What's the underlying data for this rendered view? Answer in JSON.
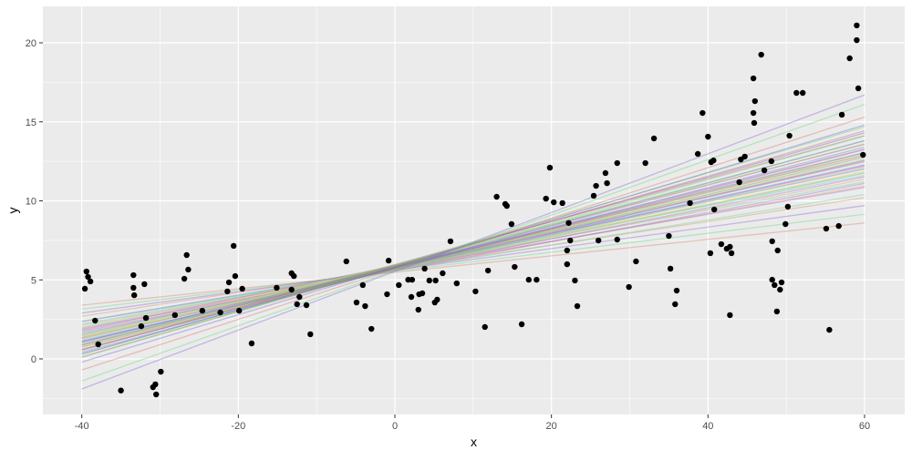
{
  "chart_data": {
    "type": "scatter",
    "title": "",
    "xlabel": "x",
    "ylabel": "y",
    "xlim": [
      -45,
      65
    ],
    "ylim": [
      -3.7,
      22.1
    ],
    "xticks": [
      -40,
      -20,
      0,
      20,
      40,
      60
    ],
    "yticks": [
      0,
      5,
      10,
      15,
      20
    ],
    "grid": true,
    "background": "#EBEBEB",
    "point_color": "#000000",
    "points": [
      [
        -39.6,
        4.44
      ],
      [
        -39.4,
        5.53
      ],
      [
        -39.2,
        5.19
      ],
      [
        -38.9,
        4.9
      ],
      [
        -38.3,
        2.42
      ],
      [
        -37.9,
        0.92
      ],
      [
        -33.4,
        4.5
      ],
      [
        -33.4,
        5.3
      ],
      [
        -33.3,
        4.03
      ],
      [
        -32.0,
        4.73
      ],
      [
        -32.4,
        2.07
      ],
      [
        -31.8,
        2.59
      ],
      [
        -30.9,
        -1.79
      ],
      [
        -30.6,
        -1.61
      ],
      [
        -30.5,
        -2.25
      ],
      [
        -29.9,
        -0.81
      ],
      [
        -35.0,
        -2.0
      ],
      [
        -28.1,
        2.77
      ],
      [
        -26.9,
        5.07
      ],
      [
        -26.6,
        6.57
      ],
      [
        -26.4,
        5.65
      ],
      [
        -24.6,
        3.05
      ],
      [
        -22.3,
        2.94
      ],
      [
        -21.4,
        4.27
      ],
      [
        -21.2,
        4.84
      ],
      [
        -20.6,
        7.15
      ],
      [
        -20.4,
        5.24
      ],
      [
        -19.9,
        3.05
      ],
      [
        -19.5,
        4.44
      ],
      [
        -18.3,
        0.98
      ],
      [
        -15.1,
        4.5
      ],
      [
        -13.2,
        4.38
      ],
      [
        -13.2,
        5.42
      ],
      [
        -12.9,
        5.24
      ],
      [
        -12.5,
        3.46
      ],
      [
        -12.2,
        3.92
      ],
      [
        -11.3,
        3.4
      ],
      [
        -10.8,
        1.56
      ],
      [
        -6.2,
        6.17
      ],
      [
        -4.9,
        3.57
      ],
      [
        -4.1,
        4.67
      ],
      [
        -3.8,
        3.34
      ],
      [
        -3.0,
        1.9
      ],
      [
        -1.0,
        4.09
      ],
      [
        -0.8,
        6.22
      ],
      [
        0.5,
        4.67
      ],
      [
        1.7,
        5.01
      ],
      [
        2.1,
        3.92
      ],
      [
        2.2,
        5.01
      ],
      [
        3.0,
        3.11
      ],
      [
        3.1,
        4.09
      ],
      [
        3.5,
        4.15
      ],
      [
        3.8,
        5.71
      ],
      [
        4.4,
        4.96
      ],
      [
        5.1,
        3.57
      ],
      [
        5.2,
        4.96
      ],
      [
        5.4,
        3.75
      ],
      [
        6.1,
        5.42
      ],
      [
        7.1,
        7.44
      ],
      [
        7.9,
        4.78
      ],
      [
        10.3,
        4.27
      ],
      [
        11.5,
        2.02
      ],
      [
        11.9,
        5.59
      ],
      [
        13.0,
        10.26
      ],
      [
        14.1,
        9.8
      ],
      [
        14.3,
        9.68
      ],
      [
        14.9,
        8.53
      ],
      [
        15.3,
        5.82
      ],
      [
        16.2,
        2.19
      ],
      [
        17.1,
        5.01
      ],
      [
        18.1,
        5.01
      ],
      [
        19.3,
        10.14
      ],
      [
        19.8,
        12.1
      ],
      [
        20.3,
        9.91
      ],
      [
        21.4,
        9.86
      ],
      [
        22.0,
        5.99
      ],
      [
        22.0,
        6.86
      ],
      [
        22.4,
        7.49
      ],
      [
        22.2,
        8.6
      ],
      [
        23.0,
        4.96
      ],
      [
        23.3,
        3.34
      ],
      [
        25.4,
        10.32
      ],
      [
        25.7,
        10.95
      ],
      [
        26.0,
        7.49
      ],
      [
        26.9,
        11.76
      ],
      [
        27.1,
        11.12
      ],
      [
        28.4,
        12.39
      ],
      [
        28.4,
        7.55
      ],
      [
        29.9,
        4.55
      ],
      [
        30.8,
        6.17
      ],
      [
        33.1,
        13.95
      ],
      [
        32.0,
        12.39
      ],
      [
        35.0,
        7.78
      ],
      [
        35.2,
        5.71
      ],
      [
        35.8,
        3.46
      ],
      [
        36.0,
        4.32
      ],
      [
        37.7,
        9.86
      ],
      [
        38.7,
        12.97
      ],
      [
        39.3,
        15.56
      ],
      [
        40.0,
        14.06
      ],
      [
        40.3,
        6.69
      ],
      [
        40.4,
        12.45
      ],
      [
        40.7,
        12.56
      ],
      [
        40.8,
        9.45
      ],
      [
        41.7,
        7.26
      ],
      [
        42.4,
        6.97
      ],
      [
        42.8,
        2.77
      ],
      [
        42.8,
        7.09
      ],
      [
        43.0,
        6.69
      ],
      [
        44.0,
        11.18
      ],
      [
        44.2,
        12.62
      ],
      [
        44.7,
        12.8
      ],
      [
        45.8,
        17.75
      ],
      [
        45.8,
        15.56
      ],
      [
        45.9,
        14.93
      ],
      [
        46.0,
        16.31
      ],
      [
        46.8,
        19.25
      ],
      [
        47.2,
        11.93
      ],
      [
        48.1,
        12.51
      ],
      [
        48.2,
        7.44
      ],
      [
        48.2,
        5.01
      ],
      [
        48.5,
        4.67
      ],
      [
        48.8,
        3.0
      ],
      [
        48.9,
        6.86
      ],
      [
        49.2,
        4.38
      ],
      [
        49.4,
        4.84
      ],
      [
        49.9,
        8.53
      ],
      [
        50.2,
        9.63
      ],
      [
        50.4,
        14.12
      ],
      [
        51.3,
        16.83
      ],
      [
        52.1,
        16.83
      ],
      [
        55.1,
        8.24
      ],
      [
        55.5,
        1.84
      ],
      [
        56.7,
        8.41
      ],
      [
        57.1,
        15.45
      ],
      [
        58.1,
        19.02
      ],
      [
        59.0,
        21.1
      ],
      [
        59.0,
        20.17
      ],
      [
        59.2,
        17.12
      ],
      [
        59.8,
        12.91
      ]
    ],
    "fit_lines": {
      "x_range": [
        -40,
        60
      ],
      "opacity": 0.4,
      "slopes": [
        0.052,
        0.06,
        0.068,
        0.075,
        0.08,
        0.085,
        0.088,
        0.09,
        0.092,
        0.094,
        0.096,
        0.098,
        0.1,
        0.101,
        0.102,
        0.104,
        0.105,
        0.106,
        0.107,
        0.108,
        0.109,
        0.11,
        0.111,
        0.112,
        0.113,
        0.114,
        0.115,
        0.116,
        0.117,
        0.118,
        0.119,
        0.12,
        0.121,
        0.122,
        0.124,
        0.125,
        0.127,
        0.128,
        0.13,
        0.132,
        0.134,
        0.136,
        0.138,
        0.14,
        0.143,
        0.146,
        0.15,
        0.16,
        0.175,
        0.186
      ],
      "intercepts": [
        5.48,
        5.55,
        5.62,
        5.7,
        5.6,
        5.75,
        5.66,
        5.8,
        5.58,
        5.72,
        5.85,
        5.64,
        5.77,
        5.69,
        5.9,
        5.61,
        5.74,
        5.82,
        5.67,
        5.79,
        5.71,
        5.88,
        5.63,
        5.76,
        5.84,
        5.7,
        5.68,
        5.92,
        5.73,
        5.81,
        5.65,
        5.86,
        5.78,
        5.69,
        5.83,
        5.74,
        5.95,
        5.72,
        5.8,
        5.88,
        5.77,
        5.97,
        5.82,
        5.9,
        5.85,
        5.93,
        5.8,
        5.7,
        5.6,
        5.54
      ]
    }
  }
}
